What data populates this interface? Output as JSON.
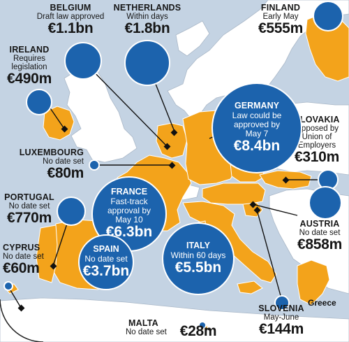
{
  "colors": {
    "sea": "#c4d3e3",
    "eu_land": "#f3a31b",
    "other_land": "#ffffff",
    "bubble_blue": "#1c63ad",
    "bubble_border": "#ffffff",
    "text": "#161616"
  },
  "countries": {
    "belgium": {
      "name": "BELGIUM",
      "status": "Draft law approved",
      "amount": "€1.1bn"
    },
    "netherlands": {
      "name": "NETHERLANDS",
      "status": "Within days",
      "amount": "€1.8bn"
    },
    "finland": {
      "name": "FINLAND",
      "status": "Early May",
      "amount": "€555m"
    },
    "ireland": {
      "name": "IRELAND",
      "status": "Requires legislation",
      "amount": "€490m"
    },
    "germany": {
      "name": "GERMANY",
      "status": "Law could be approved by May 7",
      "amount": "€8.4bn"
    },
    "slovakia": {
      "name": "SLOVAKIA",
      "status": "Opposed by Union of Employers",
      "amount": "€310m"
    },
    "luxembourg": {
      "name": "LUXEMBOURG",
      "status": "No date set",
      "amount": "€80m"
    },
    "france": {
      "name": "FRANCE",
      "status": "Fast-track approval by May 10",
      "amount": "€6.3bn"
    },
    "portugal": {
      "name": "PORTUGAL",
      "status": "No date set",
      "amount": "€770m"
    },
    "austria": {
      "name": "AUSTRIA",
      "status": "No date set",
      "amount": "€858m"
    },
    "cyprus": {
      "name": "CYPRUS",
      "status": "No date set",
      "amount": "€60m"
    },
    "spain": {
      "name": "SPAIN",
      "status": "No date set",
      "amount": "€3.7bn"
    },
    "italy": {
      "name": "ITALY",
      "status": "Within 60 days",
      "amount": "€5.5bn"
    },
    "slovenia": {
      "name": "SLOVENIA",
      "status": "May-June",
      "amount": "€144m"
    },
    "malta": {
      "name": "MALTA",
      "status": "No date set",
      "amount": "€28m"
    }
  },
  "map_labels": {
    "greece": "Greece"
  }
}
